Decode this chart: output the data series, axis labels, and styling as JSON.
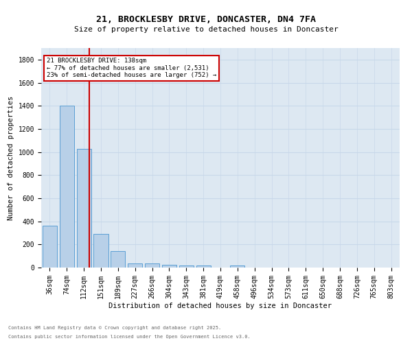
{
  "title": "21, BROCKLESBY DRIVE, DONCASTER, DN4 7FA",
  "subtitle": "Size of property relative to detached houses in Doncaster",
  "xlabel": "Distribution of detached houses by size in Doncaster",
  "ylabel": "Number of detached properties",
  "bar_color": "#b8d0e8",
  "bar_edge_color": "#5a9fd4",
  "grid_color": "#c8d8ea",
  "bg_color": "#dde8f2",
  "categories": [
    "36sqm",
    "74sqm",
    "112sqm",
    "151sqm",
    "189sqm",
    "227sqm",
    "266sqm",
    "304sqm",
    "343sqm",
    "381sqm",
    "419sqm",
    "458sqm",
    "496sqm",
    "534sqm",
    "573sqm",
    "611sqm",
    "650sqm",
    "688sqm",
    "726sqm",
    "765sqm",
    "803sqm"
  ],
  "values": [
    360,
    1400,
    1030,
    290,
    140,
    38,
    35,
    25,
    20,
    15,
    0,
    20,
    0,
    0,
    0,
    0,
    0,
    0,
    0,
    0,
    0
  ],
  "ylim": [
    0,
    1900
  ],
  "yticks": [
    0,
    200,
    400,
    600,
    800,
    1000,
    1200,
    1400,
    1600,
    1800
  ],
  "property_line_x": 2.33,
  "annotation_line1": "21 BROCKLESBY DRIVE: 138sqm",
  "annotation_line2": "← 77% of detached houses are smaller (2,531)",
  "annotation_line3": "23% of semi-detached houses are larger (752) →",
  "footer1": "Contains HM Land Registry data © Crown copyright and database right 2025.",
  "footer2": "Contains public sector information licensed under the Open Government Licence v3.0.",
  "line_color": "#cc0000",
  "annotation_box_color": "#cc0000",
  "annotation_text_color": "#000000",
  "title_fontsize": 9.5,
  "subtitle_fontsize": 8,
  "tick_fontsize": 7,
  "ylabel_fontsize": 7.5,
  "xlabel_fontsize": 7.5,
  "footer_fontsize": 5,
  "ann_fontsize": 6.5
}
